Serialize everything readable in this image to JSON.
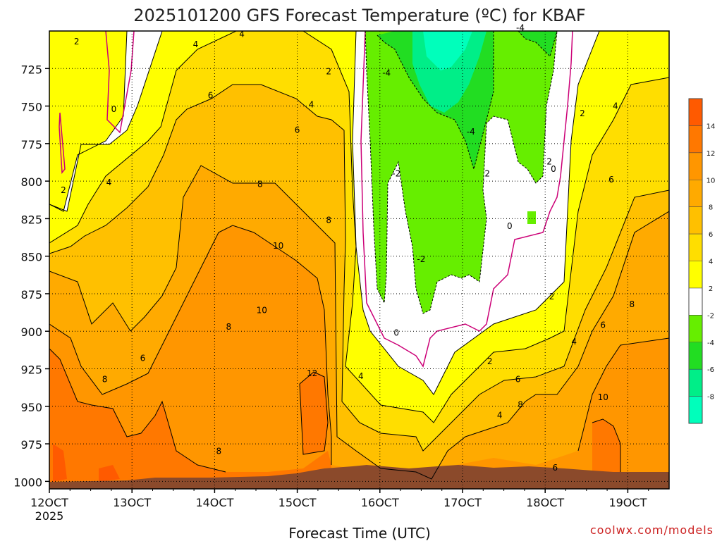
{
  "chart_data": {
    "type": "heatmap",
    "title": "2025101200 GFS Forecast Temperature (ºC) for KBAF",
    "xlabel": "Forecast Time (UTC)",
    "ylabel": "",
    "x_ticks": [
      "12OCT",
      "13OCT",
      "14OCT",
      "15OCT",
      "16OCT",
      "17OCT",
      "18OCT",
      "19OCT"
    ],
    "x_year": "2025",
    "x_range_days": [
      12.0,
      19.5
    ],
    "y_ticks": [
      725,
      750,
      775,
      800,
      825,
      850,
      875,
      900,
      925,
      950,
      975,
      1000
    ],
    "y_range_hpa": [
      700,
      1005
    ],
    "colorbar_labels": [
      "14",
      "12",
      "10",
      "8",
      "6",
      "4",
      "2",
      "-2",
      "-4",
      "-6",
      "-8"
    ],
    "colorbar_colors": [
      "#ff5a00",
      "#ff7800",
      "#ff9600",
      "#ffaa00",
      "#ffc000",
      "#ffde00",
      "#ffff00",
      "#ffffff",
      "#66ee00",
      "#22dd22",
      "#00ee88",
      "#00ffbb"
    ],
    "contour_labels": [
      {
        "t": "2",
        "d": 12.33,
        "p": 707
      },
      {
        "t": "0",
        "d": 12.78,
        "p": 752
      },
      {
        "t": "2",
        "d": 12.17,
        "p": 806
      },
      {
        "t": "4",
        "d": 12.72,
        "p": 801
      },
      {
        "t": "4",
        "d": 13.77,
        "p": 709
      },
      {
        "t": "4",
        "d": 14.33,
        "p": 702
      },
      {
        "t": "2",
        "d": 15.38,
        "p": 727
      },
      {
        "t": "6",
        "d": 13.95,
        "p": 743
      },
      {
        "t": "4",
        "d": 15.17,
        "p": 749
      },
      {
        "t": "6",
        "d": 15.0,
        "p": 766
      },
      {
        "t": "8",
        "d": 14.55,
        "p": 802
      },
      {
        "t": "8",
        "d": 15.38,
        "p": 826
      },
      {
        "t": "10",
        "d": 14.77,
        "p": 843
      },
      {
        "t": "10",
        "d": 14.57,
        "p": 886
      },
      {
        "t": "8",
        "d": 14.17,
        "p": 897
      },
      {
        "t": "6",
        "d": 13.13,
        "p": 918
      },
      {
        "t": "8",
        "d": 12.67,
        "p": 932
      },
      {
        "t": "12",
        "d": 15.18,
        "p": 928
      },
      {
        "t": "8",
        "d": 14.05,
        "p": 980
      },
      {
        "t": "4",
        "d": 15.77,
        "p": 930
      },
      {
        "t": "-4",
        "d": 16.08,
        "p": 728
      },
      {
        "t": "-4",
        "d": 17.1,
        "p": 767
      },
      {
        "t": "-4",
        "d": 17.7,
        "p": 698
      },
      {
        "t": "-2",
        "d": 16.2,
        "p": 795
      },
      {
        "t": "2",
        "d": 17.3,
        "p": 795
      },
      {
        "t": "-2",
        "d": 16.5,
        "p": 852
      },
      {
        "t": "0",
        "d": 17.57,
        "p": 830
      },
      {
        "t": "0",
        "d": 16.2,
        "p": 901
      },
      {
        "t": "2",
        "d": 18.05,
        "p": 787
      },
      {
        "t": "0",
        "d": 18.1,
        "p": 792
      },
      {
        "t": "2",
        "d": 18.45,
        "p": 755
      },
      {
        "t": "4",
        "d": 18.85,
        "p": 750
      },
      {
        "t": "6",
        "d": 18.8,
        "p": 799
      },
      {
        "t": "2",
        "d": 18.08,
        "p": 877
      },
      {
        "t": "8",
        "d": 19.05,
        "p": 882
      },
      {
        "t": "6",
        "d": 18.7,
        "p": 896
      },
      {
        "t": "4",
        "d": 18.35,
        "p": 907
      },
      {
        "t": "2",
        "d": 17.33,
        "p": 920
      },
      {
        "t": "6",
        "d": 17.67,
        "p": 932
      },
      {
        "t": "8",
        "d": 17.7,
        "p": 949
      },
      {
        "t": "4",
        "d": 17.45,
        "p": 956
      },
      {
        "t": "10",
        "d": 18.7,
        "p": 944
      },
      {
        "t": "6",
        "d": 18.12,
        "p": 991
      }
    ]
  },
  "footer": {
    "watermark": "coolwx.com/models"
  }
}
